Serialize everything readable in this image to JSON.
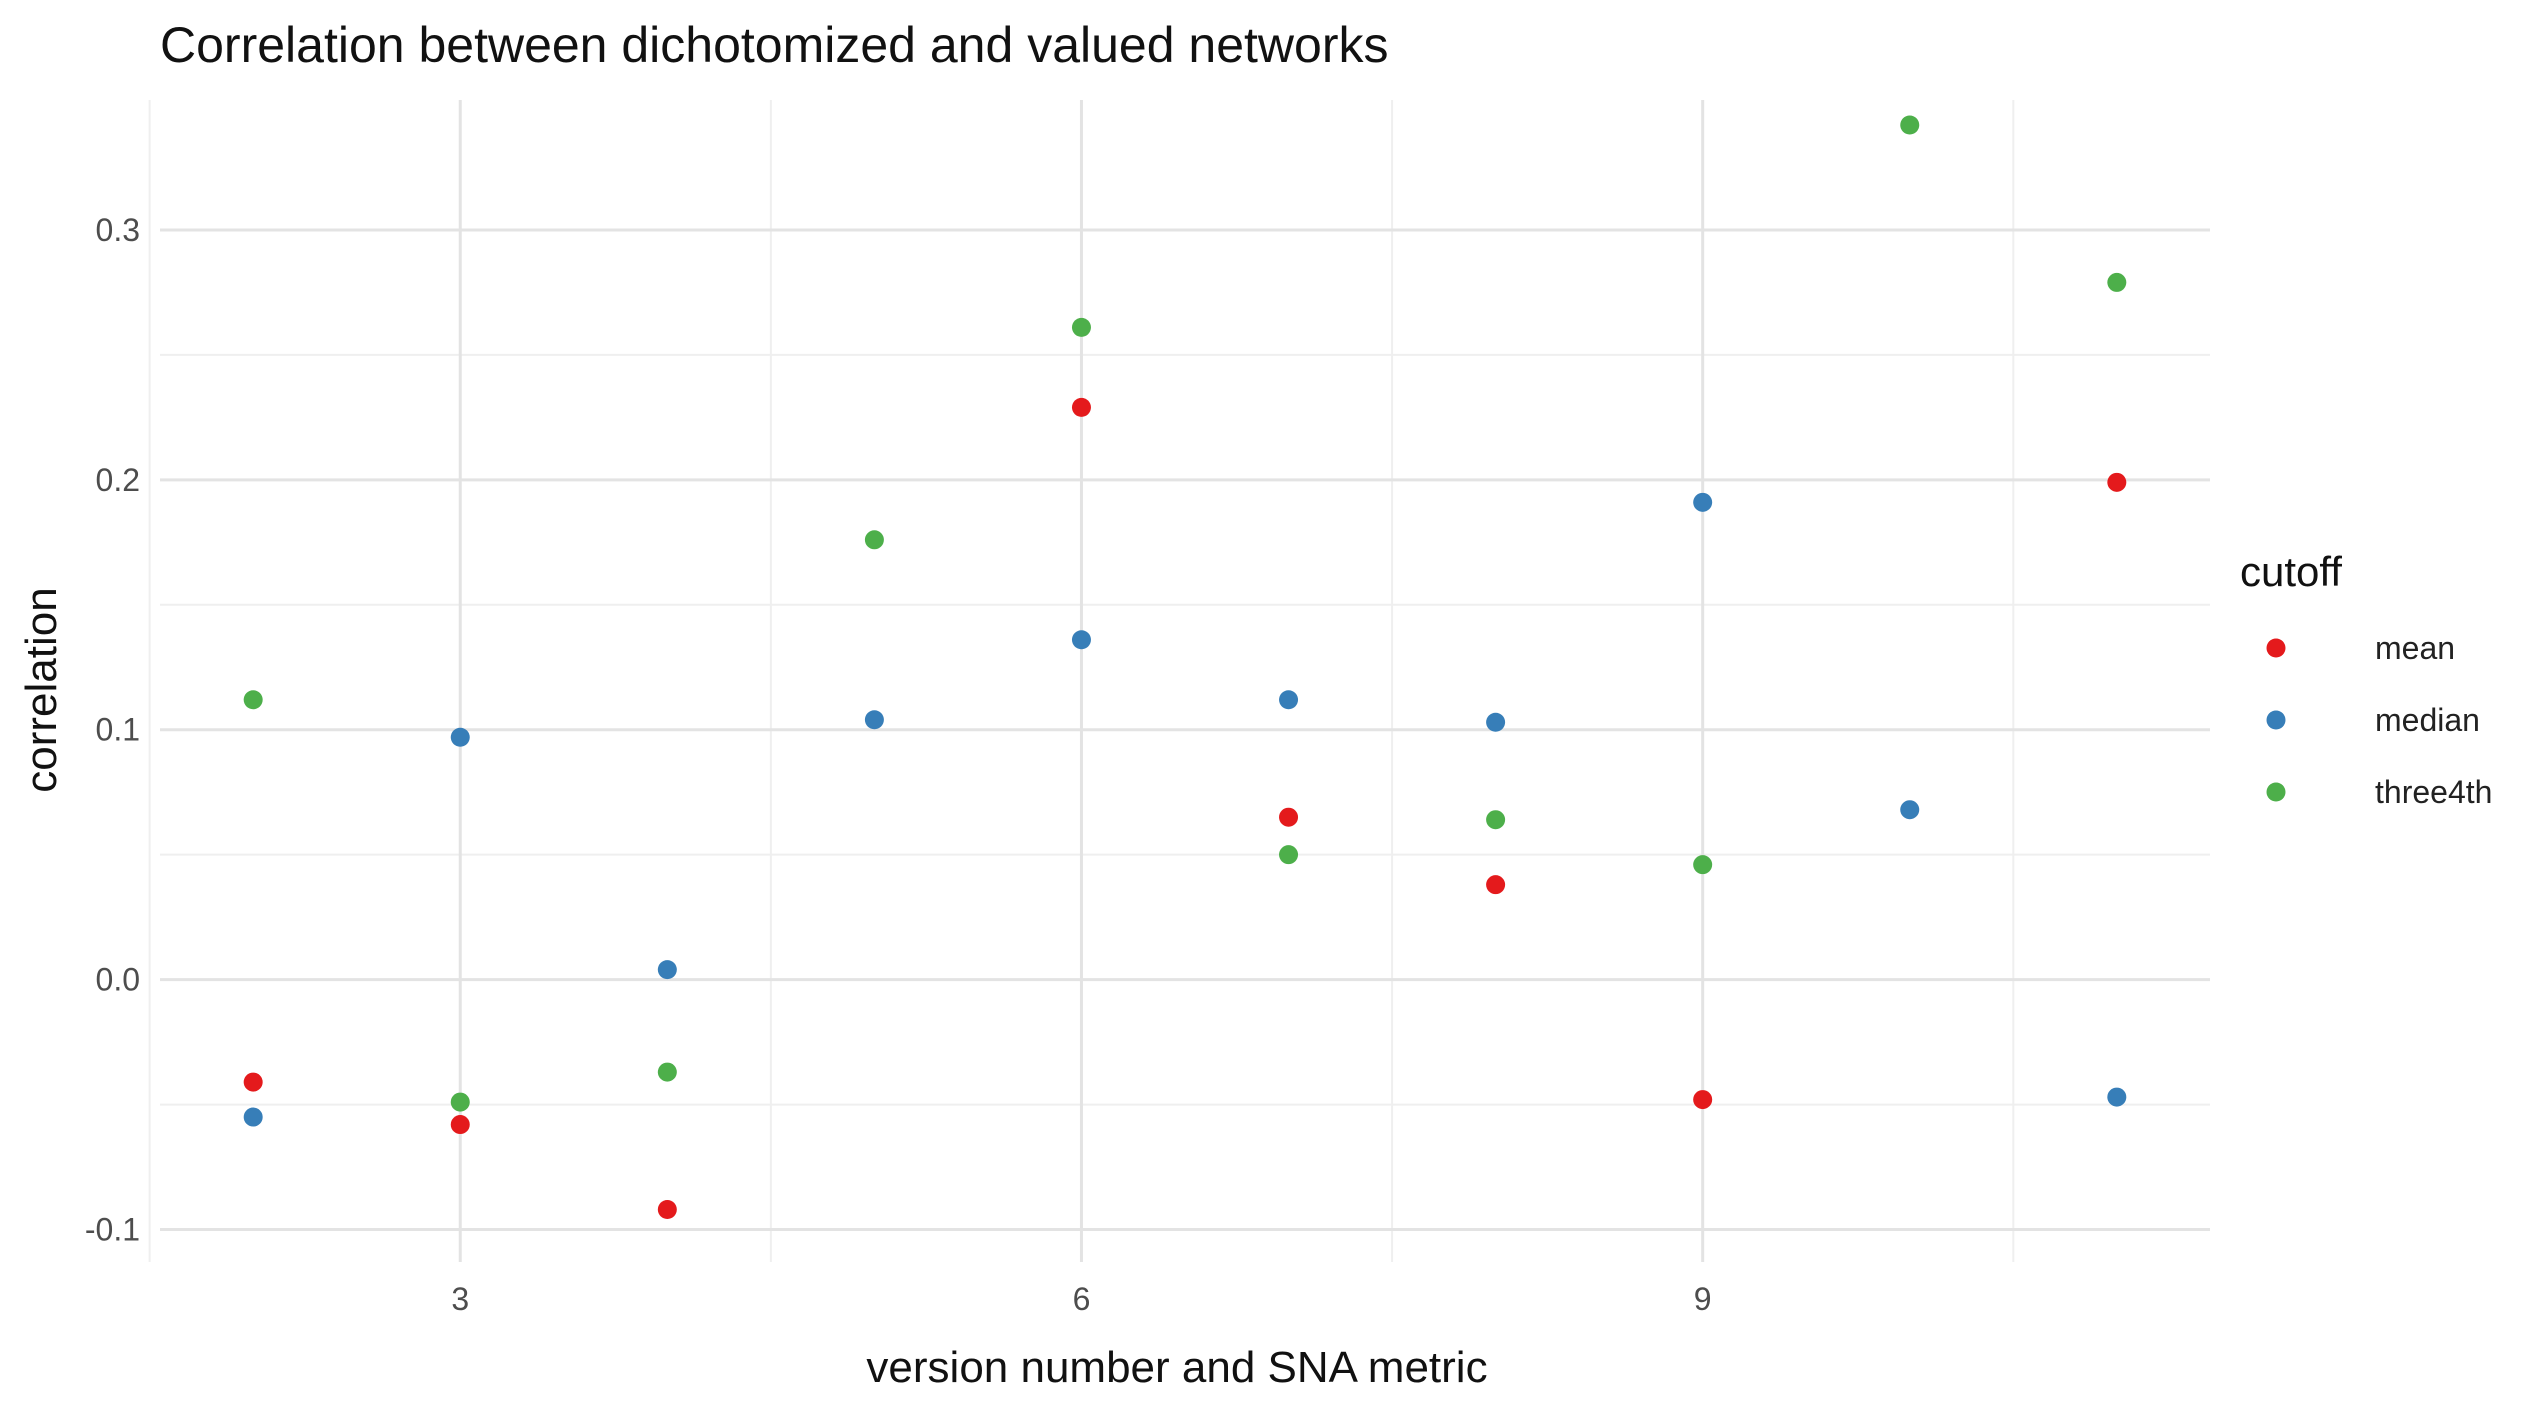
{
  "chart_data": {
    "type": "scatter",
    "title": "Correlation between dichotomized and valued networks",
    "xlabel": "version number and SNA metric",
    "ylabel": "correlation",
    "xlim": [
      1.55,
      11.45
    ],
    "ylim": [
      -0.113,
      0.352
    ],
    "x_major_ticks": [
      3,
      6,
      9
    ],
    "x_major_tick_labels": [
      "3",
      "6",
      "9"
    ],
    "x_minor_ticks": [
      1.5,
      4.5,
      7.5,
      10.5
    ],
    "y_major_ticks": [
      -0.1,
      0.0,
      0.1,
      0.2,
      0.3
    ],
    "y_major_tick_labels": [
      "-0.1",
      "0.0",
      "0.1",
      "0.2",
      "0.3"
    ],
    "y_minor_ticks": [
      -0.05,
      0.05,
      0.15,
      0.25
    ],
    "grid": true,
    "legend": {
      "title": "cutoff",
      "position": "right"
    },
    "series": [
      {
        "name": "mean",
        "color": "#e41a1c",
        "points": [
          {
            "x": 2,
            "y": -0.041
          },
          {
            "x": 3,
            "y": -0.058
          },
          {
            "x": 4,
            "y": -0.092
          },
          {
            "x": 6,
            "y": 0.229
          },
          {
            "x": 7,
            "y": 0.065
          },
          {
            "x": 8,
            "y": 0.038
          },
          {
            "x": 9,
            "y": -0.048
          },
          {
            "x": 11,
            "y": 0.199
          }
        ]
      },
      {
        "name": "median",
        "color": "#377eb8",
        "points": [
          {
            "x": 2,
            "y": -0.055
          },
          {
            "x": 3,
            "y": 0.097
          },
          {
            "x": 4,
            "y": 0.004
          },
          {
            "x": 5,
            "y": 0.104
          },
          {
            "x": 6,
            "y": 0.136
          },
          {
            "x": 7,
            "y": 0.112
          },
          {
            "x": 8,
            "y": 0.103
          },
          {
            "x": 9,
            "y": 0.191
          },
          {
            "x": 10,
            "y": 0.068
          },
          {
            "x": 11,
            "y": -0.047
          }
        ]
      },
      {
        "name": "three4th",
        "color": "#4daf4a",
        "points": [
          {
            "x": 2,
            "y": 0.112
          },
          {
            "x": 3,
            "y": -0.049
          },
          {
            "x": 4,
            "y": -0.037
          },
          {
            "x": 5,
            "y": 0.176
          },
          {
            "x": 6,
            "y": 0.261
          },
          {
            "x": 7,
            "y": 0.05
          },
          {
            "x": 8,
            "y": 0.064
          },
          {
            "x": 9,
            "y": 0.046
          },
          {
            "x": 10,
            "y": 0.342
          },
          {
            "x": 11,
            "y": 0.279
          }
        ]
      }
    ]
  }
}
